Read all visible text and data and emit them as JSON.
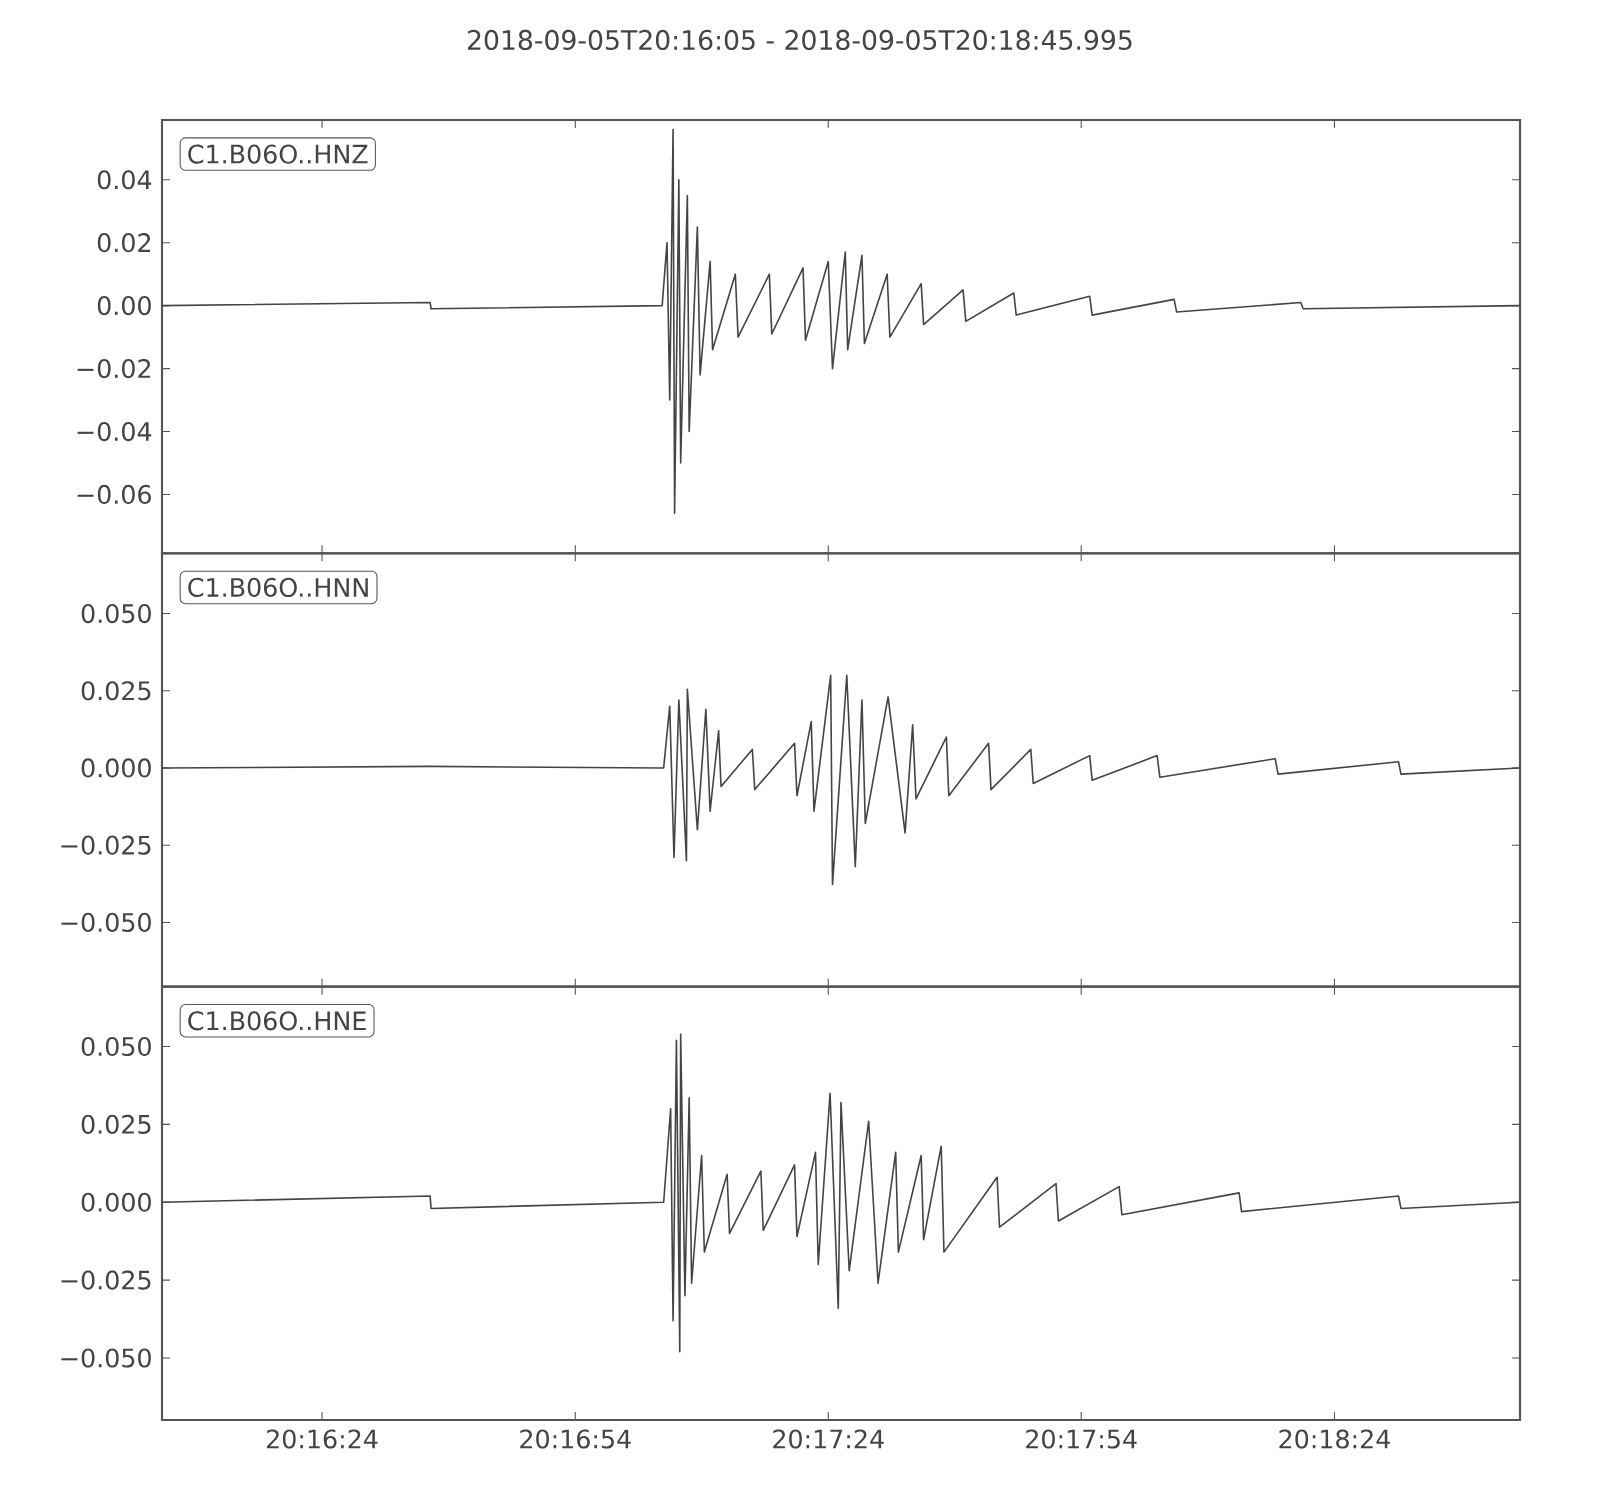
{
  "chart_data": [
    {
      "type": "line",
      "title": "2018-09-05T20:16:05  -  2018-09-05T20:18:45.995",
      "annotations": [
        "C1.B06O..HNZ"
      ],
      "tick_labels": "y",
      "grid": false,
      "xlim": [
        20.26806,
        20.31278
      ],
      "xticks": [
        {
          "value": 20.27333,
          "label": null
        },
        {
          "value": 20.28167,
          "label": null
        },
        {
          "value": 20.29,
          "label": null
        },
        {
          "value": 20.29833,
          "label": null
        },
        {
          "value": 20.30667,
          "label": null
        }
      ],
      "ylim": [
        -0.0787,
        0.059
      ],
      "yticks": [
        {
          "value": -0.06,
          "label": "−0.06"
        },
        {
          "value": -0.04,
          "label": "−0.04"
        },
        {
          "value": -0.02,
          "label": "−0.02"
        },
        {
          "value": 0,
          "label": "0.00"
        },
        {
          "value": 0.02,
          "label": "0.02"
        },
        {
          "value": 0.04,
          "label": "0.04"
        }
      ],
      "series": [
        {
          "color": "#444444",
          "x": [
            20.26806,
            20.27689,
            20.27692,
            20.28453,
            20.28469,
            20.28478,
            20.28489,
            20.28494,
            20.28508,
            20.28514,
            20.28536,
            20.28542,
            20.28569,
            20.28578,
            20.28611,
            20.28619,
            20.28694,
            20.28703,
            20.28806,
            20.28814,
            20.28917,
            20.28925,
            20.29,
            20.29014,
            20.29056,
            20.29064,
            20.29111,
            20.29119,
            20.29194,
            20.29203,
            20.29306,
            20.29314,
            20.29444,
            20.29453,
            20.29611,
            20.29619,
            20.29861,
            20.29869,
            20.30139,
            20.30147,
            20.30556,
            20.30564,
            20.31275
          ],
          "values": [
            0,
            0.001,
            -0.001,
            0,
            0.02,
            -0.03,
            0.056,
            -0.066,
            0.04,
            -0.05,
            0.035,
            -0.04,
            0.025,
            -0.022,
            0.014,
            -0.014,
            0.01,
            -0.01,
            0.01,
            -0.009,
            0.012,
            -0.011,
            0.014,
            -0.02,
            0.017,
            -0.014,
            0.016,
            -0.012,
            0.01,
            -0.01,
            0.007,
            -0.006,
            0.005,
            -0.005,
            0.004,
            -0.003,
            0.003,
            -0.003,
            0.002,
            -0.002,
            0.001,
            -0.001,
            0
          ]
        }
      ]
    },
    {
      "type": "line",
      "annotations": [
        "C1.B06O..HNN"
      ],
      "tick_labels": "y",
      "grid": false,
      "xlim": [
        20.26806,
        20.31278
      ],
      "xticks": [
        {
          "value": 20.27333,
          "label": null
        },
        {
          "value": 20.28167,
          "label": null
        },
        {
          "value": 20.29,
          "label": null
        },
        {
          "value": 20.29833,
          "label": null
        },
        {
          "value": 20.30667,
          "label": null
        }
      ],
      "ylim": [
        -0.0708,
        0.0695
      ],
      "yticks": [
        {
          "value": -0.05,
          "label": "−0.050"
        },
        {
          "value": -0.025,
          "label": "−0.025"
        },
        {
          "value": 0,
          "label": "0.000"
        },
        {
          "value": 0.025,
          "label": "0.025"
        },
        {
          "value": 0.05,
          "label": "0.050"
        }
      ],
      "series": [
        {
          "color": "#444444",
          "x": [
            20.26806,
            20.27689,
            20.28458,
            20.28478,
            20.28492,
            20.28508,
            20.28533,
            20.28536,
            20.28569,
            20.28597,
            20.28611,
            20.28639,
            20.28647,
            20.2875,
            20.28758,
            20.28889,
            20.28897,
            20.28944,
            20.28953,
            20.29008,
            20.29014,
            20.29061,
            20.29089,
            20.29111,
            20.29122,
            20.29197,
            20.29253,
            20.29278,
            20.29289,
            20.29389,
            20.29397,
            20.29528,
            20.29536,
            20.29667,
            20.29675,
            20.29861,
            20.29869,
            20.30083,
            20.30092,
            20.30472,
            20.30481,
            20.30878,
            20.30886,
            20.31275
          ],
          "values": [
            0,
            0.0005,
            0,
            0.02,
            -0.029,
            0.022,
            -0.03,
            0.0255,
            -0.02,
            0.019,
            -0.014,
            0.012,
            -0.006,
            0.006,
            -0.007,
            0.008,
            -0.009,
            0.015,
            -0.014,
            0.03,
            -0.0377,
            0.03,
            -0.032,
            0.022,
            -0.018,
            0.023,
            -0.021,
            0.014,
            -0.01,
            0.01,
            -0.009,
            0.008,
            -0.007,
            0.006,
            -0.005,
            0.004,
            -0.004,
            0.004,
            -0.003,
            0.003,
            -0.002,
            0.002,
            -0.002,
            0
          ]
        }
      ]
    },
    {
      "type": "line",
      "annotations": [
        "C1.B06O..HNE"
      ],
      "grid": false,
      "xlim": [
        20.26806,
        20.31278
      ],
      "xticks": [
        {
          "value": 20.27333,
          "label": "20:16:24"
        },
        {
          "value": 20.28167,
          "label": "20:16:54"
        },
        {
          "value": 20.29,
          "label": "20:17:24"
        },
        {
          "value": 20.29833,
          "label": "20:17:54"
        },
        {
          "value": 20.30667,
          "label": "20:18:24"
        }
      ],
      "ylim": [
        -0.0699,
        0.0692
      ],
      "yticks": [
        {
          "value": -0.05,
          "label": "−0.050"
        },
        {
          "value": -0.025,
          "label": "−0.025"
        },
        {
          "value": 0,
          "label": "0.000"
        },
        {
          "value": 0.025,
          "label": "0.025"
        },
        {
          "value": 0.05,
          "label": "0.050"
        }
      ],
      "series": [
        {
          "color": "#444444",
          "x": [
            20.26806,
            20.27689,
            20.27692,
            20.28458,
            20.28481,
            20.28489,
            20.285,
            20.28511,
            20.28514,
            20.28528,
            20.28542,
            20.2855,
            20.28583,
            20.28592,
            20.28667,
            20.28675,
            20.28778,
            20.28786,
            20.28889,
            20.28897,
            20.28958,
            20.28967,
            20.29006,
            20.29033,
            20.29042,
            20.29069,
            20.29133,
            20.29164,
            20.29222,
            20.29231,
            20.29306,
            20.29314,
            20.29372,
            20.29381,
            20.29556,
            20.29564,
            20.2975,
            20.29758,
            20.29958,
            20.29967,
            20.30353,
            20.30361,
            20.30878,
            20.30886,
            20.31275
          ],
          "values": [
            0,
            0.002,
            -0.002,
            0,
            0.03,
            -0.038,
            0.052,
            -0.048,
            0.054,
            -0.03,
            0.0335,
            -0.026,
            0.015,
            -0.016,
            0.009,
            -0.01,
            0.01,
            -0.009,
            0.012,
            -0.011,
            0.016,
            -0.02,
            0.035,
            -0.034,
            0.032,
            -0.022,
            0.026,
            -0.026,
            0.016,
            -0.016,
            0.015,
            -0.012,
            0.018,
            -0.016,
            0.008,
            -0.008,
            0.006,
            -0.006,
            0.005,
            -0.004,
            0.003,
            -0.003,
            0.002,
            -0.002,
            0
          ]
        }
      ]
    }
  ]
}
